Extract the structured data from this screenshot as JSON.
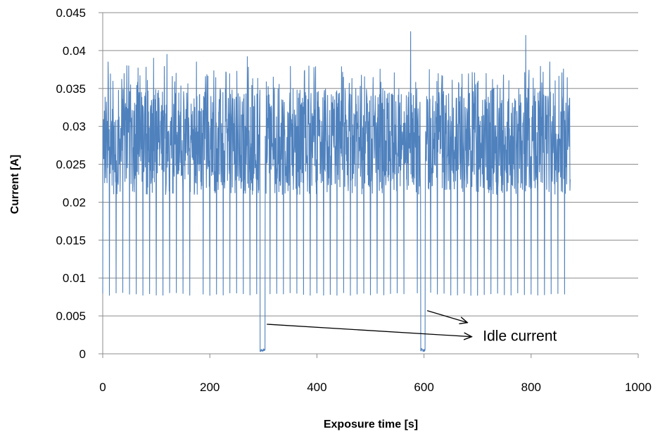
{
  "chart_data": {
    "type": "line",
    "title": "",
    "xlabel": "Exposure time [s]",
    "ylabel": "Current [A]",
    "xlim": [
      0,
      1000
    ],
    "ylim": [
      0,
      0.045
    ],
    "x_ticks": [
      "0",
      "200",
      "400",
      "600",
      "800",
      "1000"
    ],
    "y_ticks": [
      "0",
      "0.005",
      "0.01",
      "0.015",
      "0.02",
      "0.025",
      "0.03",
      "0.035",
      "0.04",
      "0.045"
    ],
    "grid": "horizontal",
    "legend": "none",
    "series": [
      {
        "name": "",
        "color": "#4f81bd",
        "description_data": {
          "x_range": [
            0,
            873
          ],
          "baseline_band": [
            0.021,
            0.035
          ],
          "periodic_dip_min": 0.0077,
          "dip_period_s": 12.5,
          "peaks": [
            {
              "x": 10,
              "y": 0.0385
            },
            {
              "x": 45,
              "y": 0.038
            },
            {
              "x": 95,
              "y": 0.039
            },
            {
              "x": 120,
              "y": 0.0395
            },
            {
              "x": 175,
              "y": 0.0385
            },
            {
              "x": 270,
              "y": 0.0392
            },
            {
              "x": 575,
              "y": 0.0425
            },
            {
              "x": 610,
              "y": 0.0375
            },
            {
              "x": 790,
              "y": 0.042
            },
            {
              "x": 835,
              "y": 0.0385
            }
          ],
          "idle_segments": [
            {
              "x_start": 294,
              "x_end": 303,
              "y": 0.0003
            },
            {
              "x_start": 594,
              "x_end": 602,
              "y": 0.0003
            }
          ]
        }
      }
    ],
    "annotations": [
      {
        "text": "Idle current",
        "x": 710,
        "y": 0.0017
      }
    ]
  }
}
